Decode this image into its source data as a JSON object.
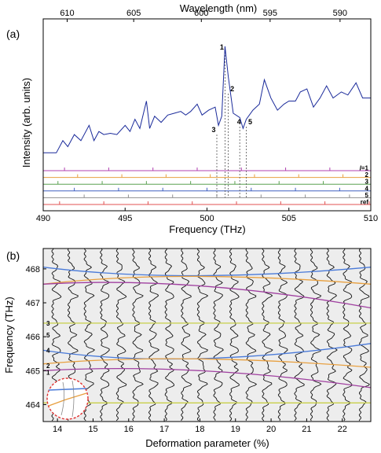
{
  "chart_data": [
    {
      "panel": "(a)",
      "type": "line",
      "xlabel": "Frequency (THz)",
      "ylabel": "Intensity (arb. units)",
      "xlim": [
        490,
        510
      ],
      "x_ticks": [
        490,
        495,
        500,
        505,
        510
      ],
      "top_axis_label": "Wavelength (nm)",
      "top_ticks": [
        610,
        605,
        600,
        595,
        590
      ],
      "series": [
        {
          "x": [
            490.0,
            490.8,
            491.2,
            491.5,
            491.9,
            492.3,
            492.8,
            493.1,
            493.4,
            493.7,
            494.1,
            494.5,
            495.0,
            495.3,
            495.6,
            495.9,
            496.3,
            496.5,
            496.8,
            497.2,
            497.6,
            498.0,
            498.4,
            498.7,
            499.0,
            499.4,
            499.7,
            500.1,
            500.5,
            500.7,
            500.9,
            501.1,
            501.3,
            501.6,
            502.0,
            502.2,
            502.4,
            502.8,
            503.2,
            503.5,
            503.9,
            504.3,
            504.7,
            505.0,
            505.4,
            505.7,
            506.1,
            506.5,
            506.9,
            507.3,
            507.7,
            508.2,
            508.6,
            509.1,
            509.5,
            510.0
          ],
          "y": [
            0.1,
            0.1,
            0.3,
            0.2,
            0.4,
            0.3,
            0.55,
            0.3,
            0.45,
            0.4,
            0.42,
            0.4,
            0.55,
            0.45,
            0.65,
            0.5,
            0.95,
            0.5,
            0.7,
            0.6,
            0.72,
            0.75,
            0.78,
            0.72,
            0.78,
            0.9,
            0.72,
            0.8,
            0.85,
            0.55,
            0.7,
            1.85,
            1.35,
            0.75,
            0.68,
            0.5,
            0.65,
            0.8,
            0.9,
            1.3,
            1.0,
            0.8,
            0.9,
            0.95,
            0.95,
            1.1,
            1.15,
            0.85,
            1.0,
            1.2,
            1.0,
            1.1,
            1.05,
            1.25,
            1.0,
            1.0
          ]
        }
      ],
      "peak_labels": [
        "1",
        "2",
        "3",
        "4",
        "5"
      ],
      "peak_positions": [
        501.1,
        501.3,
        500.6,
        502.0,
        502.4
      ],
      "mode_rows": [
        {
          "label": "l=1",
          "color": "#b040b0",
          "ticks": [
            491.3,
            494.0,
            496.7,
            499.4,
            502.1,
            504.8,
            507.5
          ]
        },
        {
          "label": "2",
          "color": "#e8a040",
          "ticks": [
            492.1,
            494.8,
            497.5,
            500.2,
            502.9,
            505.6,
            508.3
          ]
        },
        {
          "label": "3",
          "color": "#5aa050",
          "ticks": [
            490.9,
            493.6,
            496.3,
            499.0,
            501.7,
            504.4,
            507.1,
            509.8
          ]
        },
        {
          "label": "4",
          "color": "#4060c0",
          "ticks": [
            491.9,
            494.6,
            497.3,
            500.0,
            502.7,
            505.4,
            508.1
          ]
        },
        {
          "label": "5",
          "color": "#909090",
          "ticks": [
            492.5,
            495.2,
            497.9,
            500.6,
            503.3,
            506.0,
            508.7
          ]
        },
        {
          "label": "ref",
          "color": "#e05050",
          "ticks": [
            491.0,
            493.7,
            496.4,
            499.1,
            501.8,
            504.5,
            507.2,
            509.9
          ]
        }
      ]
    },
    {
      "panel": "(b)",
      "type": "line",
      "xlabel": "Deformation parameter (%)",
      "ylabel": "Frequency (THz)",
      "xlim": [
        13.6,
        22.8
      ],
      "ylim": [
        463.5,
        468.6
      ],
      "x_ticks": [
        14,
        15,
        16,
        17,
        18,
        19,
        20,
        21,
        22
      ],
      "y_ticks": [
        464,
        465,
        466,
        467,
        468
      ],
      "branch_labels": [
        "3",
        "5",
        "4",
        "2",
        "1"
      ],
      "branch_label_y": [
        466.4,
        466.05,
        465.6,
        465.15,
        464.95
      ],
      "series": [
        {
          "color": "#4a7ad8",
          "x": [
            13.6,
            17.8,
            22.8
          ],
          "y": [
            468.05,
            467.8,
            468.05
          ]
        },
        {
          "color": "#e8a040",
          "x": [
            13.6,
            17.8,
            22.8
          ],
          "y": [
            467.55,
            467.78,
            467.55
          ]
        },
        {
          "color": "#a040a0",
          "x": [
            13.6,
            18.0,
            22.8
          ],
          "y": [
            467.55,
            467.5,
            466.85
          ]
        },
        {
          "color": "#c8d048",
          "x": [
            13.6,
            22.8
          ],
          "y": [
            466.4,
            466.4
          ]
        },
        {
          "color": "#4a7ad8",
          "x": [
            13.6,
            17.8,
            22.8
          ],
          "y": [
            465.6,
            465.35,
            465.8
          ]
        },
        {
          "color": "#e8a040",
          "x": [
            13.6,
            17.8,
            22.8
          ],
          "y": [
            465.2,
            465.35,
            465.1
          ]
        },
        {
          "color": "#a040a0",
          "x": [
            13.6,
            18.0,
            22.8
          ],
          "y": [
            465.0,
            465.0,
            464.5
          ]
        },
        {
          "color": "#c8d048",
          "x": [
            13.6,
            22.8
          ],
          "y": [
            464.05,
            464.05
          ]
        }
      ]
    }
  ]
}
